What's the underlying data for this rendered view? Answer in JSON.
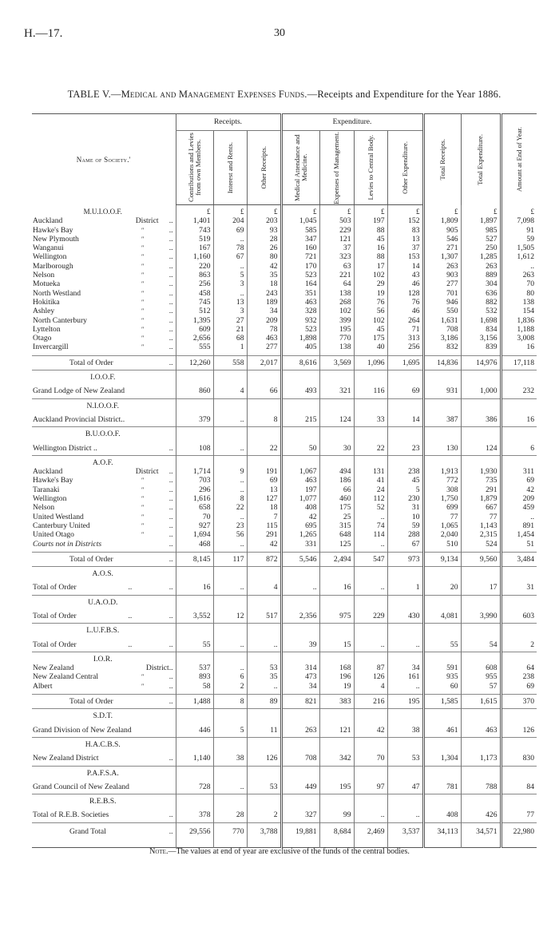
{
  "header": {
    "running_head": "H.—17.",
    "page_number": "30"
  },
  "title": {
    "prefix": "TABLE V.—",
    "sc": "Medical and Management Expenses Funds.",
    "rest": "—Receipts and Expenditure for the Year 1886."
  },
  "columns": {
    "name": "Name of Society.'",
    "group_receipts": "Receipts.",
    "group_expenditure": "Expenditure.",
    "cols": [
      "Contributions and Levies from own Members.",
      "Interest and Rents.",
      "Other Receipts.",
      "Medical Attendance and Medicine.",
      "Expenses of Management.",
      "Levies to Central Body.",
      "Other Expenditure.",
      "Total Receipts.",
      "Total Expenditure.",
      "Amount at End of Year."
    ],
    "currency": "£"
  },
  "sections": [
    {
      "order": "M.U.I.O.O.F.",
      "currency_row": true,
      "rows": [
        {
          "name": "Auckland",
          "dist": "District",
          "v": [
            "1,401",
            "204",
            "203",
            "1,045",
            "503",
            "197",
            "152",
            "1,809",
            "1,897",
            "7,098"
          ]
        },
        {
          "name": "Hawke's Bay",
          "dist": "\"",
          "v": [
            "743",
            "69",
            "93",
            "585",
            "229",
            "88",
            "83",
            "905",
            "985",
            "91"
          ]
        },
        {
          "name": "New Plymouth",
          "dist": "\"",
          "v": [
            "519",
            "..",
            "28",
            "347",
            "121",
            "45",
            "13",
            "546",
            "527",
            "59"
          ]
        },
        {
          "name": "Wanganui",
          "dist": "\"",
          "v": [
            "167",
            "78",
            "26",
            "160",
            "37",
            "16",
            "37",
            "271",
            "250",
            "1,505"
          ]
        },
        {
          "name": "Wellington",
          "dist": "\"",
          "v": [
            "1,160",
            "67",
            "80",
            "721",
            "323",
            "88",
            "153",
            "1,307",
            "1,285",
            "1,612"
          ]
        },
        {
          "name": "Marlborough",
          "dist": "\"",
          "v": [
            "220",
            "..",
            "42",
            "170",
            "63",
            "17",
            "14",
            "263",
            "263",
            ".."
          ]
        },
        {
          "name": "Nelson",
          "dist": "\"",
          "v": [
            "863",
            "5",
            "35",
            "523",
            "221",
            "102",
            "43",
            "903",
            "889",
            "263"
          ]
        },
        {
          "name": "Motueka",
          "dist": "\"",
          "v": [
            "256",
            "3",
            "18",
            "164",
            "64",
            "29",
            "46",
            "277",
            "304",
            "70"
          ]
        },
        {
          "name": "North Westland",
          "dist": "\"",
          "v": [
            "458",
            "..",
            "243",
            "351",
            "138",
            "19",
            "128",
            "701",
            "636",
            "80"
          ]
        },
        {
          "name": "Hokitika",
          "dist": "\"",
          "v": [
            "745",
            "13",
            "189",
            "463",
            "268",
            "76",
            "76",
            "946",
            "882",
            "138"
          ]
        },
        {
          "name": "Ashley",
          "dist": "\"",
          "v": [
            "512",
            "3",
            "34",
            "328",
            "102",
            "56",
            "46",
            "550",
            "532",
            "154"
          ]
        },
        {
          "name": "North Canterbury",
          "dist": "\"",
          "v": [
            "1,395",
            "27",
            "209",
            "932",
            "399",
            "102",
            "264",
            "1,631",
            "1,698",
            "1,836"
          ]
        },
        {
          "name": "Lyttelton",
          "dist": "\"",
          "v": [
            "609",
            "21",
            "78",
            "523",
            "195",
            "45",
            "71",
            "708",
            "834",
            "1,188"
          ]
        },
        {
          "name": "Otago",
          "dist": "\"",
          "v": [
            "2,656",
            "68",
            "463",
            "1,898",
            "770",
            "175",
            "313",
            "3,186",
            "3,156",
            "3,008"
          ]
        },
        {
          "name": "Invercargill",
          "dist": "\"",
          "v": [
            "555",
            "1",
            "277",
            "405",
            "138",
            "40",
            "256",
            "832",
            "839",
            "16"
          ]
        }
      ],
      "total": {
        "label": "Total of Order",
        "v": [
          "12,260",
          "558",
          "2,017",
          "8,616",
          "3,569",
          "1,096",
          "1,695",
          "14,836",
          "14,976",
          "17,118"
        ]
      }
    },
    {
      "order": "I.O.O.F.",
      "rows": [
        {
          "name": "Grand Lodge of New Zealand",
          "nodots": true,
          "v": [
            "860",
            "4",
            "66",
            "493",
            "321",
            "116",
            "69",
            "931",
            "1,000",
            "232"
          ]
        }
      ]
    },
    {
      "order": "N.I.O.O.F.",
      "rows": [
        {
          "name": "Auckland Provincial District..",
          "nodots": true,
          "v": [
            "379",
            "..",
            "8",
            "215",
            "124",
            "33",
            "14",
            "387",
            "386",
            "16"
          ]
        }
      ]
    },
    {
      "order": "B.U.O.O.F.",
      "rows": [
        {
          "name": "Wellington District ..",
          "v": [
            "108",
            "..",
            "22",
            "50",
            "30",
            "22",
            "23",
            "130",
            "124",
            "6"
          ]
        }
      ]
    },
    {
      "order": "A.O.F.",
      "rows": [
        {
          "name": "Auckland",
          "dist": "District",
          "v": [
            "1,714",
            "9",
            "191",
            "1,067",
            "494",
            "131",
            "238",
            "1,913",
            "1,930",
            "311"
          ]
        },
        {
          "name": "Hawke's Bay",
          "dist": "\"",
          "v": [
            "703",
            "..",
            "69",
            "463",
            "186",
            "41",
            "45",
            "772",
            "735",
            "69"
          ]
        },
        {
          "name": "Taranaki",
          "dist": "\"",
          "v": [
            "296",
            "..",
            "13",
            "197",
            "66",
            "24",
            "5",
            "308",
            "291",
            "42"
          ]
        },
        {
          "name": "Wellington",
          "dist": "\"",
          "v": [
            "1,616",
            "8",
            "127",
            "1,077",
            "460",
            "112",
            "230",
            "1,750",
            "1,879",
            "209"
          ]
        },
        {
          "name": "Nelson",
          "dist": "\"",
          "v": [
            "658",
            "22",
            "18",
            "408",
            "175",
            "52",
            "31",
            "699",
            "667",
            "459"
          ]
        },
        {
          "name": "United Westland",
          "dist": "\"",
          "v": [
            "70",
            "..",
            "7",
            "42",
            "25",
            "..",
            "10",
            "77",
            "77",
            ".."
          ]
        },
        {
          "name": "Canterbury United",
          "dist": "\"",
          "v": [
            "927",
            "23",
            "115",
            "695",
            "315",
            "74",
            "59",
            "1,065",
            "1,143",
            "891"
          ]
        },
        {
          "name": "United Otago",
          "dist": "\"",
          "v": [
            "1,694",
            "56",
            "291",
            "1,265",
            "648",
            "114",
            "288",
            "2,040",
            "2,315",
            "1,454"
          ]
        },
        {
          "name": "Courts not in Districts",
          "italic": true,
          "v": [
            "468",
            "..",
            "42",
            "331",
            "125",
            "..",
            "67",
            "510",
            "524",
            "51"
          ]
        }
      ],
      "total": {
        "label": "Total of Order",
        "v": [
          "8,145",
          "117",
          "872",
          "5,546",
          "2,494",
          "547",
          "973",
          "9,134",
          "9,560",
          "3,484"
        ]
      }
    },
    {
      "order": "A.O.S.",
      "rows": [
        {
          "name": "Total of Order",
          "mid": "..",
          "v": [
            "16",
            "..",
            "4",
            "..",
            "16",
            "..",
            "1",
            "20",
            "17",
            "31"
          ]
        }
      ]
    },
    {
      "order": "U.A.O.D.",
      "rows": [
        {
          "name": "Total of Order",
          "mid": "..",
          "v": [
            "3,552",
            "12",
            "517",
            "2,356",
            "975",
            "229",
            "430",
            "4,081",
            "3,990",
            "603"
          ]
        }
      ]
    },
    {
      "order": "L.U.F.B.S.",
      "rows": [
        {
          "name": "Total of Order",
          "mid": "..",
          "v": [
            "55",
            "..",
            "..",
            "39",
            "15",
            "..",
            "..",
            "55",
            "54",
            "2"
          ]
        }
      ]
    },
    {
      "order": "I.O.R.",
      "rows": [
        {
          "name": "New Zealand",
          "dist": "District..",
          "nodots": true,
          "v": [
            "537",
            "..",
            "53",
            "314",
            "168",
            "87",
            "34",
            "591",
            "608",
            "64"
          ]
        },
        {
          "name": "New Zealand Central",
          "dist": "\"",
          "v": [
            "893",
            "6",
            "35",
            "473",
            "196",
            "126",
            "161",
            "935",
            "955",
            "238"
          ]
        },
        {
          "name": "Albert",
          "dist": "\"",
          "v": [
            "58",
            "2",
            "..",
            "34",
            "19",
            "4",
            "..",
            "60",
            "57",
            "69"
          ]
        }
      ],
      "total": {
        "label": "Total of Order",
        "v": [
          "1,488",
          "8",
          "89",
          "821",
          "383",
          "216",
          "195",
          "1,585",
          "1,615",
          "370"
        ]
      }
    },
    {
      "order": "S.D.T.",
      "rows": [
        {
          "name": "Grand Division of New Zealand",
          "nodots": true,
          "v": [
            "446",
            "5",
            "11",
            "263",
            "121",
            "42",
            "38",
            "461",
            "463",
            "126"
          ]
        }
      ]
    },
    {
      "order": "H.A.C.B.S.",
      "rows": [
        {
          "name": "New Zealand District",
          "v": [
            "1,140",
            "38",
            "126",
            "708",
            "342",
            "70",
            "53",
            "1,304",
            "1,173",
            "830"
          ]
        }
      ]
    },
    {
      "order": "P.A.F.S.A.",
      "rows": [
        {
          "name": "Grand Council of New Zealand",
          "nodots": true,
          "v": [
            "728",
            "..",
            "53",
            "449",
            "195",
            "97",
            "47",
            "781",
            "788",
            "84"
          ]
        }
      ]
    },
    {
      "order": "R.E.B.S.",
      "rows": [
        {
          "name": "Total of R.E.B. Societies",
          "v": [
            "378",
            "28",
            "2",
            "327",
            "99",
            "..",
            "..",
            "408",
            "426",
            "77"
          ]
        }
      ]
    }
  ],
  "grand_total": {
    "label": "Grand Total",
    "v": [
      "29,556",
      "770",
      "3,788",
      "19,881",
      "8,684",
      "2,469",
      "3,537",
      "34,113",
      "34,571",
      "22,980"
    ]
  },
  "note": {
    "lead": "Note.",
    "text": "—The values at end of year are exclusive of the funds of the central bodies."
  }
}
